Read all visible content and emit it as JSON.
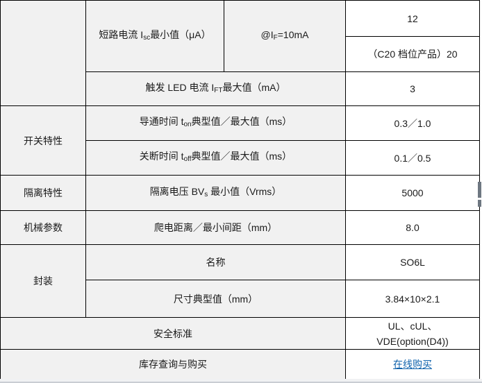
{
  "colors": {
    "link_blue": "#0f62ac",
    "cell_gray": "#f1f1f1",
    "border": "#000000",
    "scrollbar_thumb": "#6e7781"
  },
  "section_headers": {
    "switching": "开关特性",
    "isolation": "隔离特性",
    "mechanical": "机械参数",
    "package": "封装",
    "safety": "安全标准",
    "stock": "库存查询与购买"
  },
  "params": {
    "isc": [
      {
        "t": "短路电流 I"
      },
      {
        "t": "sc",
        "sub": true
      },
      {
        "t": "最小值（μA）"
      }
    ],
    "if_cond": [
      {
        "t": "@I"
      },
      {
        "t": "F",
        "sub": true
      },
      {
        "t": "=10mA"
      }
    ],
    "ift": [
      {
        "t": "触发 LED 电流 I"
      },
      {
        "t": "FT",
        "sub": true
      },
      {
        "t": "最大值（mA）"
      }
    ],
    "ton": [
      {
        "t": "导通时间 t"
      },
      {
        "t": "on",
        "sub": true
      },
      {
        "t": "典型值／最大值（ms）"
      }
    ],
    "toff": [
      {
        "t": "关断时间 t"
      },
      {
        "t": "off",
        "sub": true
      },
      {
        "t": "典型值／最大值（ms）"
      }
    ],
    "bvs": [
      {
        "t": "隔离电压 BV"
      },
      {
        "t": "s",
        "sub": true
      },
      {
        "t": " 最小值（Vrms）"
      }
    ],
    "creepage": "爬电距离／最小间距（mm）",
    "pkg_name": "名称",
    "pkg_dim": "尺寸典型值（mm）"
  },
  "values": {
    "isc_min": "12",
    "isc_c20": "（C20 档位产品）20",
    "ift_max": "3",
    "ton": "0.3／1.0",
    "toff": "0.1／0.5",
    "bvs_min": "5000",
    "creepage": "8.0",
    "pkg_name": "SO6L",
    "pkg_dim": "3.84×10×2.1",
    "safety_line1": "UL、cUL、",
    "safety_line2": "VDE(option(D4))",
    "buy_link": "在线购买"
  }
}
